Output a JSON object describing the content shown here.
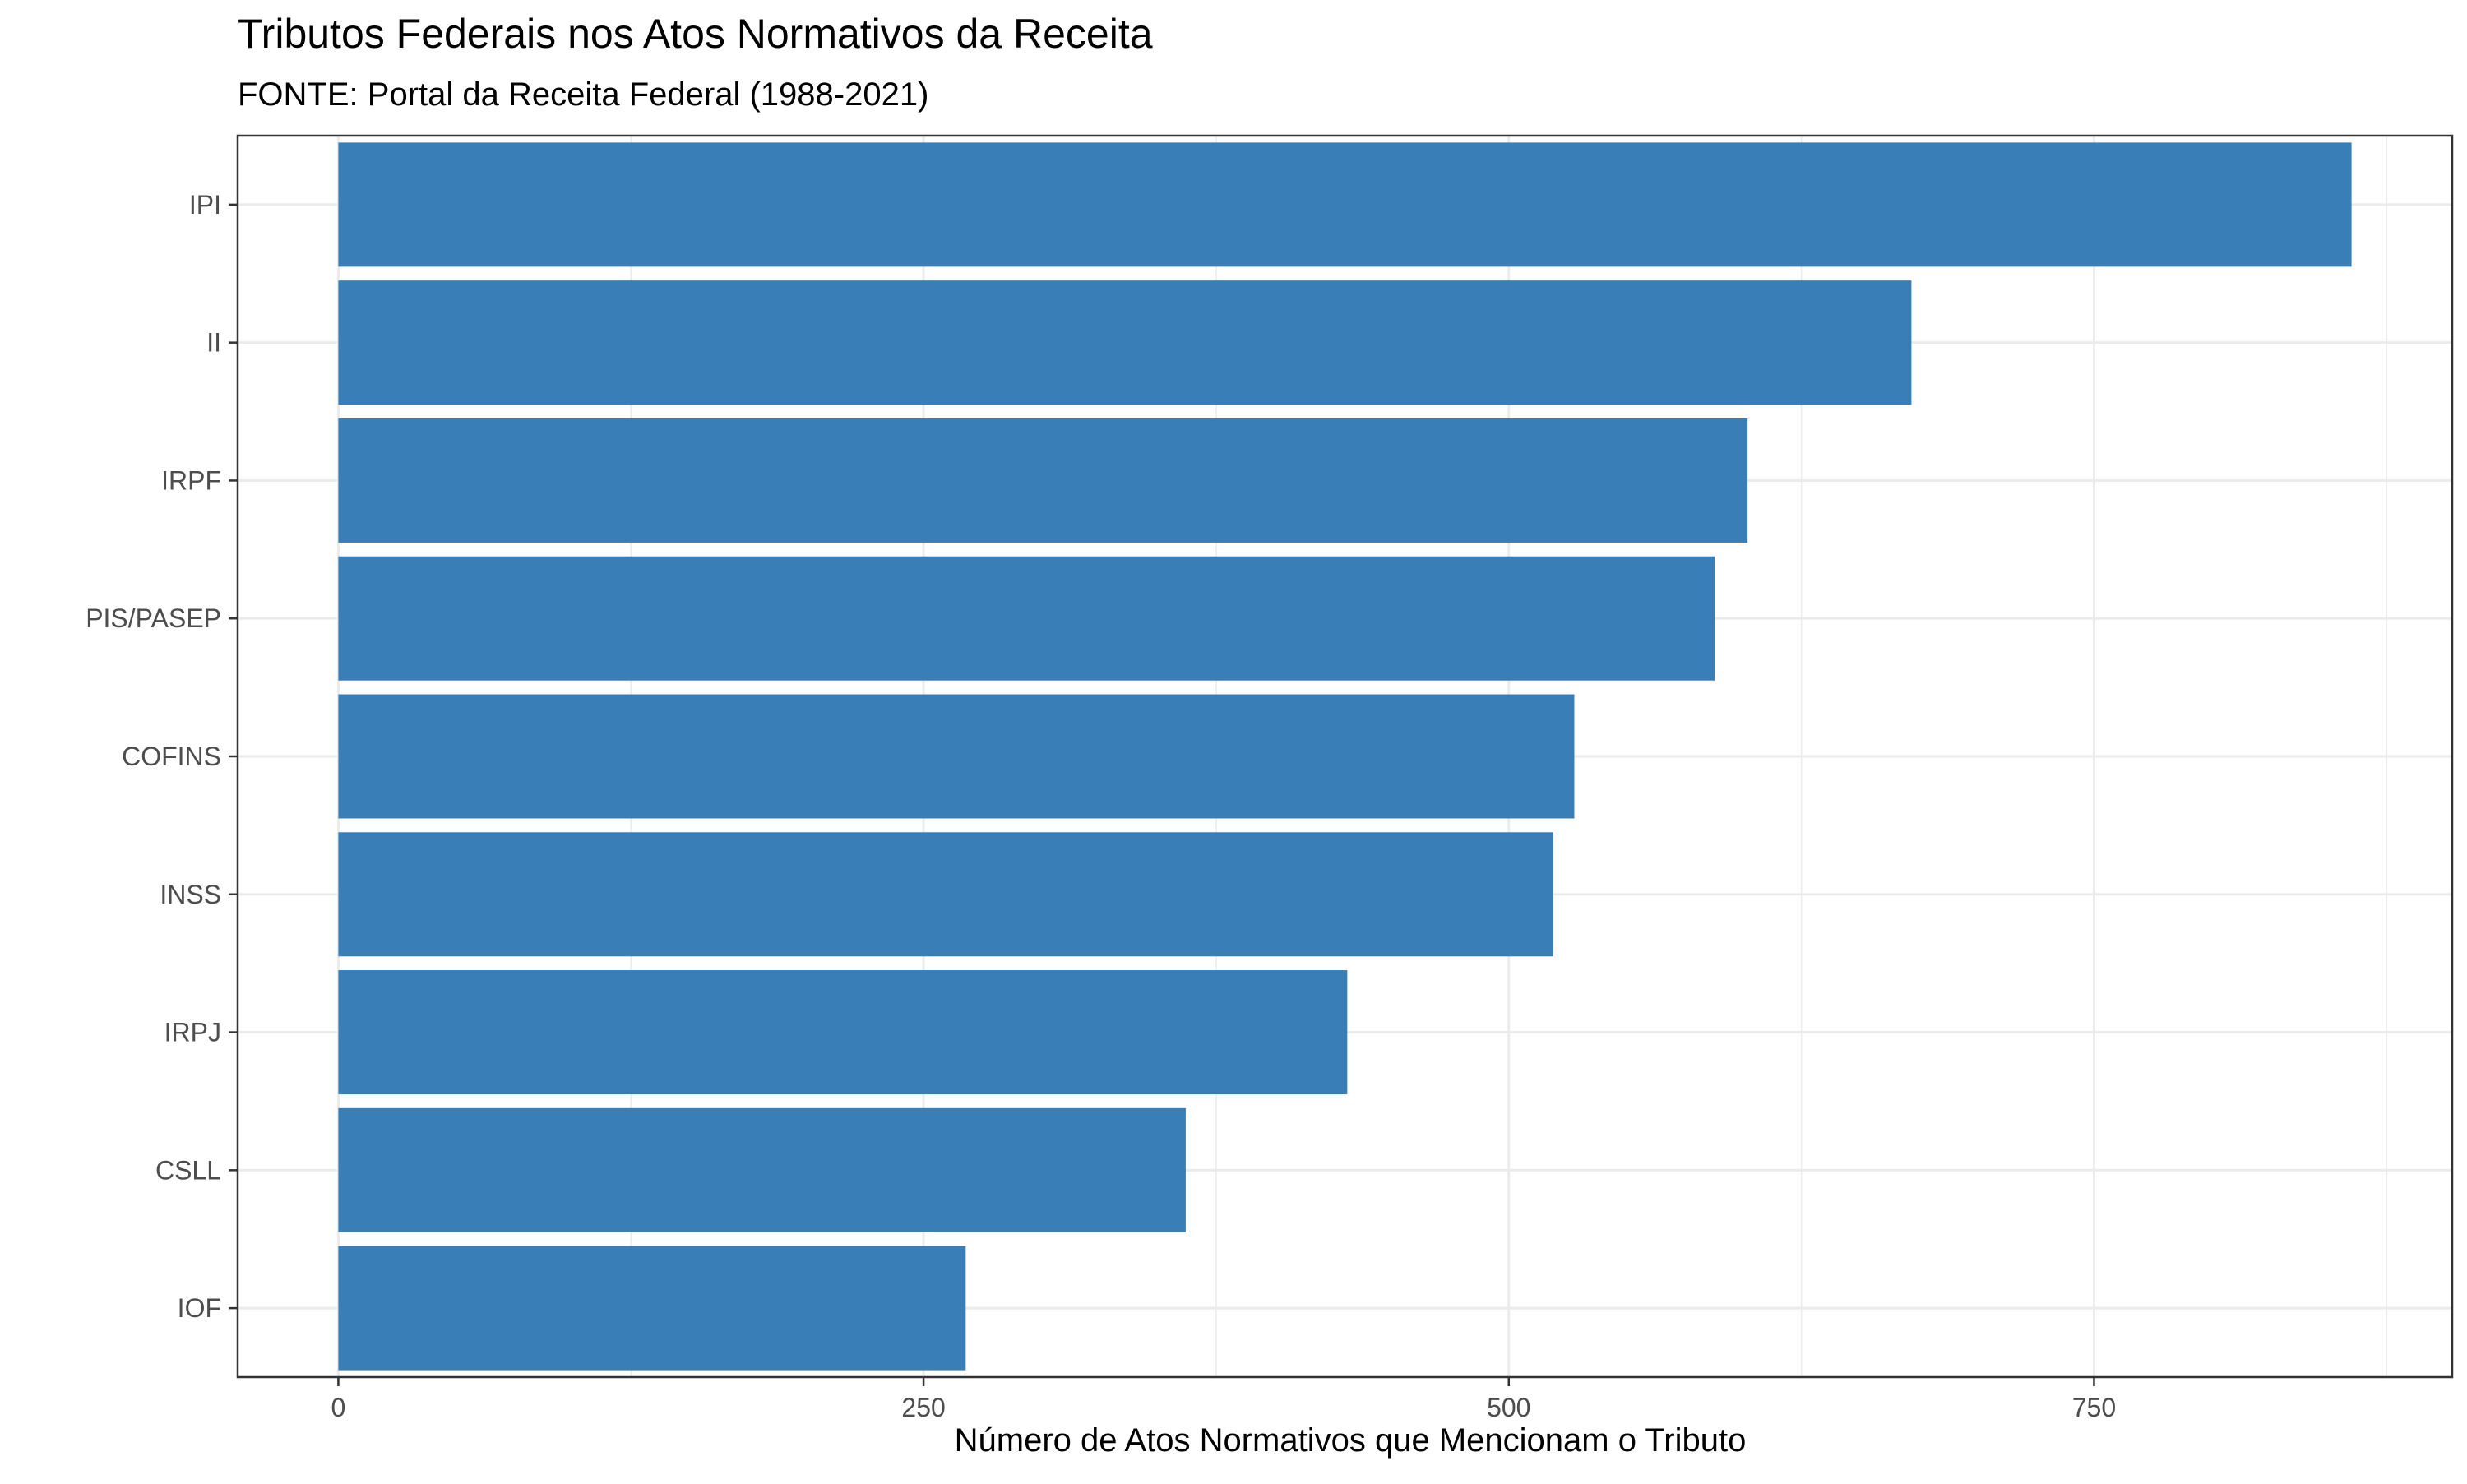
{
  "chart_data": {
    "type": "bar",
    "orientation": "horizontal",
    "title": "Tributos Federais nos Atos Normativos da Receita",
    "subtitle": "FONTE: Portal da Receita Federal (1988-2021)",
    "xlabel": "Número de Atos Normativos que Mencionam o Tributo",
    "ylabel": "",
    "categories": [
      "IPI",
      "II",
      "IRPF",
      "PIS/PASEP",
      "COFINS",
      "INSS",
      "IRPJ",
      "CSLL",
      "IOF"
    ],
    "values": [
      860,
      672,
      602,
      588,
      528,
      519,
      431,
      362,
      268
    ],
    "xlim": [
      -43,
      903
    ],
    "xticks": [
      0,
      250,
      500,
      750
    ],
    "xtick_labels": [
      "0",
      "250",
      "500",
      "750"
    ],
    "grid": true,
    "legend": "none",
    "bar_color": "#3A7EB8"
  }
}
